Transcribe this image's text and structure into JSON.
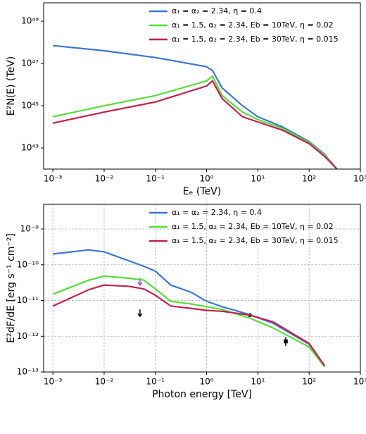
{
  "chart_data": [
    {
      "type": "line",
      "xlabel": "Eₑ (TeV)",
      "ylabel": "E²N(E) (TeV)",
      "xscale": "log",
      "yscale": "log",
      "grid": false,
      "legend": "upper right",
      "xlim": [
        0.00066,
        1000
      ],
      "ylim": [
        1e+42,
        7.4e+49
      ],
      "xticks": [
        {
          "value": 0.001,
          "label": "10⁻³"
        },
        {
          "value": 0.01,
          "label": "10⁻²"
        },
        {
          "value": 0.1,
          "label": "10⁻¹"
        },
        {
          "value": 1,
          "label": "10⁰"
        },
        {
          "value": 10,
          "label": "10¹"
        },
        {
          "value": 100,
          "label": "10²"
        },
        {
          "value": 1000,
          "label": "10³"
        }
      ],
      "yticks": [
        {
          "value": 1e+43,
          "label": "10⁴³"
        },
        {
          "value": 1e+45,
          "label": "10⁴⁵"
        },
        {
          "value": 1e+47,
          "label": "10⁴⁷"
        },
        {
          "value": 1e+49,
          "label": "10⁴⁹"
        }
      ],
      "x": [
        0.001,
        0.01,
        0.1,
        1,
        1.3,
        2,
        5,
        10,
        30,
        100,
        200,
        350
      ],
      "series": [
        {
          "name": "α₁ = α₂ = 2.34, η = 0.4",
          "color": "#3b75d6",
          "values": [
            7e+47,
            4e+47,
            1.9e+47,
            7e+46,
            4.6e+46,
            7e+45,
            1e+45,
            3e+44,
            1e+44,
            2e+43,
            5e+42,
            1e+42
          ]
        },
        {
          "name": "α₁ = 1.5, α₂ = 2.34, Eb = 10TeV, η = 0.02",
          "color": "#55dd3a",
          "values": [
            3e+44,
            1e+45,
            3e+45,
            1.5e+46,
            2.5e+46,
            3e+45,
            5e+44,
            2.2e+44,
            8.5e+43,
            1.8e+43,
            4.6e+42,
            1e+42
          ]
        },
        {
          "name": "α₁ = 1.5, α₂ = 2.34, Eb = 30TeV, η = 0.015",
          "color": "#c0234f",
          "values": [
            1.5e+44,
            5e+44,
            1.5e+45,
            8.6e+45,
            1.5e+46,
            2.2e+45,
            3e+44,
            1.7e+44,
            7e+43,
            1.6e+43,
            4e+42,
            1e+42
          ]
        }
      ]
    },
    {
      "type": "line",
      "xlabel": "Photon energy [TeV]",
      "ylabel": "E²dF/dE [erg s⁻¹ cm⁻²]",
      "xscale": "log",
      "yscale": "log",
      "grid": true,
      "legend": "upper right",
      "xlim": [
        0.00066,
        1000
      ],
      "ylim": [
        1e-13,
        4.9e-09
      ],
      "xticks": [
        {
          "value": 0.001,
          "label": "10⁻³"
        },
        {
          "value": 0.01,
          "label": "10⁻²"
        },
        {
          "value": 0.1,
          "label": "10⁻¹"
        },
        {
          "value": 1,
          "label": "10⁰"
        },
        {
          "value": 10,
          "label": "10¹"
        },
        {
          "value": 100,
          "label": "10²"
        },
        {
          "value": 1000,
          "label": "10³"
        }
      ],
      "yticks": [
        {
          "value": 1e-13,
          "label": "10⁻¹³"
        },
        {
          "value": 1e-12,
          "label": "10⁻¹²"
        },
        {
          "value": 1e-11,
          "label": "10⁻¹¹"
        },
        {
          "value": 1e-10,
          "label": "10⁻¹⁰"
        },
        {
          "value": 1e-09,
          "label": "10⁻⁹"
        }
      ],
      "x": [
        0.001,
        0.005,
        0.01,
        0.03,
        0.06,
        0.1,
        0.2,
        0.5,
        1,
        2,
        7,
        20,
        100,
        200
      ],
      "series": [
        {
          "name": "α₁ = α₂ = 2.34, η = 0.4",
          "color": "#3b75d6",
          "values": [
            2e-10,
            2.6e-10,
            2.3e-10,
            1.3e-10,
            9e-11,
            6.6e-11,
            2.7e-11,
            1.7e-11,
            9.5e-12,
            6.7e-12,
            4e-12,
            2.3e-12,
            6e-13,
            1.5e-13
          ]
        },
        {
          "name": "α₁ = 1.5, α₂ = 2.34, Eb = 10TeV, η = 0.02",
          "color": "#55dd3a",
          "values": [
            1.5e-11,
            3.7e-11,
            4.8e-11,
            4.2e-11,
            3.7e-11,
            2.1e-11,
            9.5e-12,
            8e-12,
            6.7e-12,
            5.6e-12,
            3.2e-12,
            1.7e-12,
            5e-13,
            1.4e-13
          ]
        },
        {
          "name": "α₁ = 1.5, α₂ = 2.34, Eb = 30TeV, η = 0.015",
          "color": "#c0234f",
          "values": [
            7e-12,
            2e-11,
            2.7e-11,
            2.5e-11,
            2.1e-11,
            1.4e-11,
            7e-12,
            6e-12,
            5.3e-12,
            5e-12,
            3.9e-12,
            2.5e-12,
            6.3e-13,
            1.5e-13
          ]
        }
      ],
      "markers": [
        {
          "shape": "arrow",
          "color": "#a040e0",
          "x": 0.05,
          "y": 3.4e-11
        },
        {
          "shape": "arrow",
          "color": "#000000",
          "x": 0.05,
          "y": 4.5e-12
        },
        {
          "shape": "circle",
          "color": "#000000",
          "x": 7,
          "y": 3.9e-12
        },
        {
          "shape": "square",
          "color": "#000000",
          "x": 35,
          "y": 7.2e-13,
          "ylow": 5.4e-13,
          "yhigh": 9.5e-13
        }
      ]
    }
  ]
}
